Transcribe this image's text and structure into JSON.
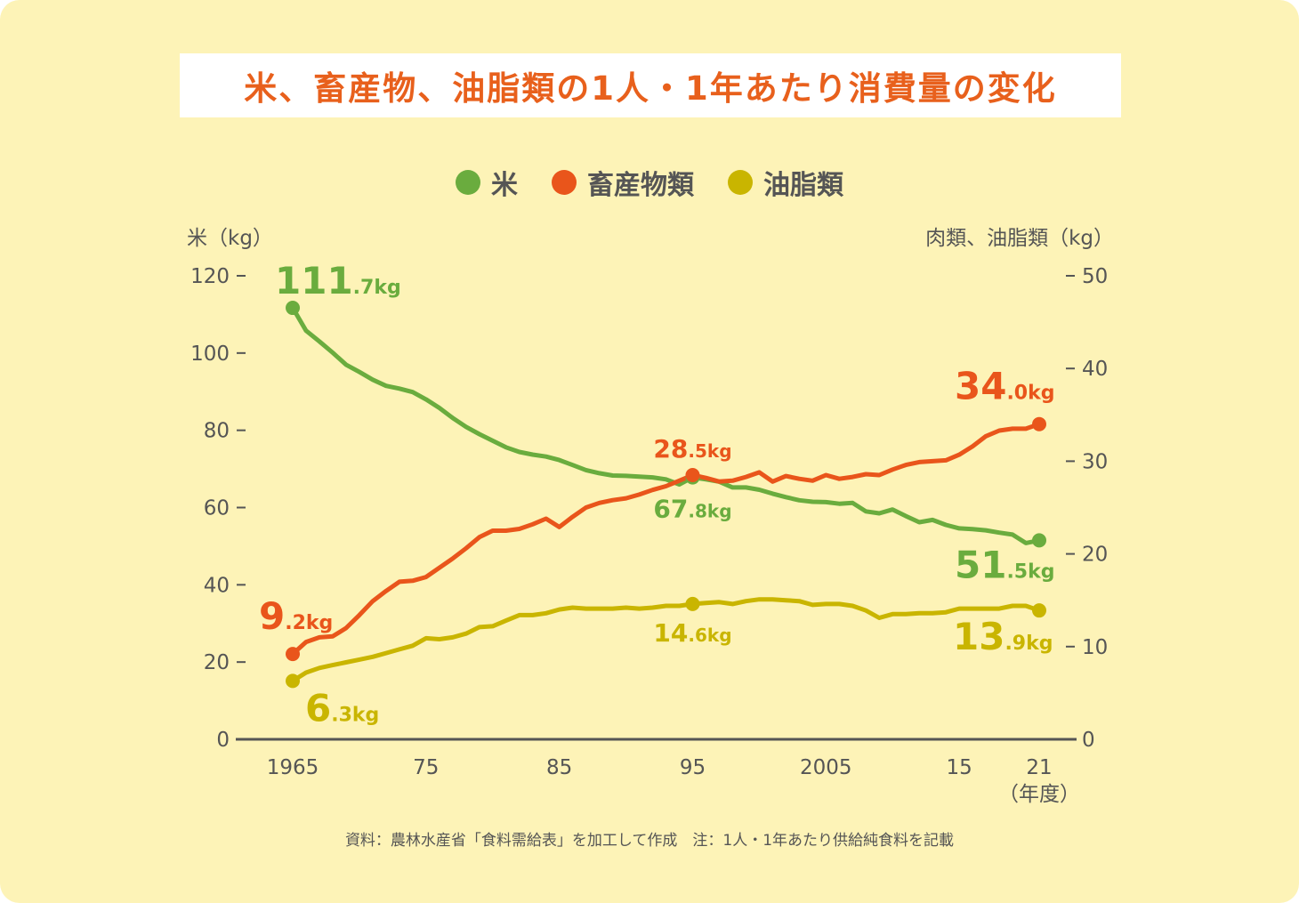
{
  "title": "米、畜産物、油脂類の1人・1年あたり消費量の変化",
  "source": "資料：農林水産省「食料需給表」を加工して作成　注：1人・1年あたり供給純食料を記載",
  "colors": {
    "rice": "#6aac3e",
    "meat": "#e9551b",
    "oil": "#c9b500",
    "background": "#fdf3b7"
  },
  "chart_data": {
    "type": "line",
    "x_tick_labels": [
      "1965",
      "75",
      "85",
      "95",
      "2005",
      "15",
      "21"
    ],
    "x_ticks": [
      1965,
      1975,
      1985,
      1995,
      2005,
      2015,
      2021
    ],
    "x_unit": "（年度）",
    "xlim": [
      1965,
      2021
    ],
    "left_axis": {
      "label": "米（kg）",
      "ylim": [
        0,
        120
      ],
      "ticks": [
        0,
        20,
        40,
        60,
        80,
        100,
        120
      ]
    },
    "right_axis": {
      "label": "肉類、油脂類（kg）",
      "ylim": [
        0,
        50
      ],
      "ticks": [
        0,
        10,
        20,
        30,
        40,
        50
      ]
    },
    "legend_position": "top-center",
    "x": [
      1965,
      1966,
      1967,
      1968,
      1969,
      1970,
      1971,
      1972,
      1973,
      1974,
      1975,
      1976,
      1977,
      1978,
      1979,
      1980,
      1981,
      1982,
      1983,
      1984,
      1985,
      1986,
      1987,
      1988,
      1989,
      1990,
      1991,
      1992,
      1993,
      1994,
      1995,
      1996,
      1997,
      1998,
      1999,
      2000,
      2001,
      2002,
      2003,
      2004,
      2005,
      2006,
      2007,
      2008,
      2009,
      2010,
      2011,
      2012,
      2013,
      2014,
      2015,
      2016,
      2017,
      2018,
      2019,
      2020,
      2021
    ],
    "series": [
      {
        "name": "米",
        "axis": "left",
        "color": "#6aac3e",
        "values": [
          111.7,
          105.8,
          103.0,
          100.1,
          97.0,
          95.1,
          93.1,
          91.5,
          90.8,
          89.9,
          88.0,
          85.8,
          83.2,
          80.9,
          79.0,
          77.3,
          75.6,
          74.4,
          73.7,
          73.2,
          72.3,
          71.0,
          69.7,
          68.9,
          68.3,
          68.2,
          68.0,
          67.8,
          67.3,
          66.0,
          67.8,
          67.3,
          66.7,
          65.2,
          65.2,
          64.6,
          63.6,
          62.7,
          61.9,
          61.5,
          61.4,
          61.0,
          61.2,
          59.0,
          58.5,
          59.5,
          57.8,
          56.2,
          56.8,
          55.5,
          54.6,
          54.4,
          54.1,
          53.5,
          53.0,
          50.8,
          51.5
        ],
        "annotations": [
          {
            "x": 1965,
            "big": "111",
            "small": ".7kg"
          },
          {
            "x": 1995,
            "big": "67",
            "small": ".8kg"
          },
          {
            "x": 2021,
            "big": "51",
            "small": ".5kg"
          }
        ]
      },
      {
        "name": "畜産物類",
        "axis": "right",
        "color": "#e9551b",
        "values": [
          9.2,
          10.5,
          11.0,
          11.1,
          12.0,
          13.4,
          14.9,
          16.0,
          17.0,
          17.1,
          17.5,
          18.5,
          19.5,
          20.6,
          21.8,
          22.5,
          22.5,
          22.7,
          23.2,
          23.8,
          22.9,
          24.0,
          25.0,
          25.5,
          25.8,
          26.0,
          26.4,
          26.9,
          27.3,
          27.9,
          28.5,
          28.2,
          27.8,
          27.9,
          28.3,
          28.8,
          27.8,
          28.4,
          28.1,
          27.9,
          28.5,
          28.1,
          28.3,
          28.6,
          28.5,
          29.1,
          29.6,
          29.9,
          30.0,
          30.1,
          30.7,
          31.6,
          32.7,
          33.3,
          33.5,
          33.5,
          34.0
        ],
        "annotations": [
          {
            "x": 1965,
            "big": "9",
            "small": ".2kg"
          },
          {
            "x": 1995,
            "big": "28",
            "small": ".5kg"
          },
          {
            "x": 2021,
            "big": "34",
            "small": ".0kg"
          }
        ]
      },
      {
        "name": "油脂類",
        "axis": "right",
        "color": "#c9b500",
        "values": [
          6.3,
          7.2,
          7.7,
          8.0,
          8.3,
          8.6,
          8.9,
          9.3,
          9.7,
          10.1,
          10.9,
          10.8,
          11.0,
          11.4,
          12.1,
          12.2,
          12.8,
          13.4,
          13.4,
          13.6,
          14.0,
          14.2,
          14.1,
          14.1,
          14.1,
          14.2,
          14.1,
          14.2,
          14.4,
          14.4,
          14.6,
          14.7,
          14.8,
          14.6,
          14.9,
          15.1,
          15.1,
          15.0,
          14.9,
          14.5,
          14.6,
          14.6,
          14.4,
          13.9,
          13.1,
          13.5,
          13.5,
          13.6,
          13.6,
          13.7,
          14.1,
          14.1,
          14.1,
          14.1,
          14.4,
          14.4,
          13.9
        ],
        "annotations": [
          {
            "x": 1965,
            "big": "6",
            "small": ".3kg"
          },
          {
            "x": 1995,
            "big": "14",
            "small": ".6kg"
          },
          {
            "x": 2021,
            "big": "13",
            "small": ".9kg"
          }
        ]
      }
    ]
  }
}
